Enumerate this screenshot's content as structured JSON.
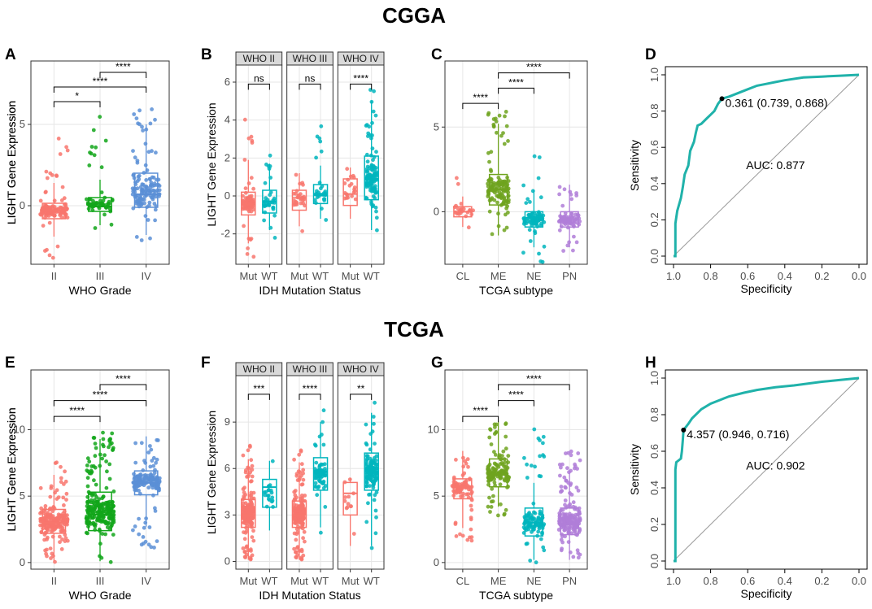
{
  "titles": {
    "top": "CGGA",
    "bottom": "TCGA"
  },
  "colors": {
    "red": "#F8766D",
    "green": "#12A61A",
    "blue": "#5B8FD6",
    "teal": "#00B5BD",
    "olive": "#6FA31F",
    "purple": "#B07ED8",
    "roc": "#20B2AA"
  },
  "chart_data": [
    {
      "panel": "A",
      "type": "box",
      "xlabel": "WHO Grade",
      "ylabel": "LIGHT Gene Expression",
      "ylim": [
        -3.6,
        8.9
      ],
      "yticks": [
        0,
        5
      ],
      "groups": [
        {
          "name": "II",
          "color": "#F8766D",
          "q": [
            -1.9,
            -0.8,
            -0.3,
            0.15,
            1.4
          ],
          "n": 120,
          "spread": [
            -3.4,
            4.2
          ]
        },
        {
          "name": "III",
          "color": "#12A61A",
          "q": [
            -1.2,
            -0.35,
            -0.05,
            0.5,
            1.6
          ],
          "n": 60,
          "spread": [
            -2.4,
            5.8
          ]
        },
        {
          "name": "IV",
          "color": "#5B8FD6",
          "q": [
            -1.8,
            -0.1,
            0.7,
            2.0,
            5.0
          ],
          "n": 130,
          "spread": [
            -2.3,
            6.0
          ]
        }
      ],
      "comparisons": [
        {
          "a": 0,
          "b": 1,
          "label": "*",
          "y": 6.4
        },
        {
          "a": 0,
          "b": 2,
          "label": "****",
          "y": 7.3
        },
        {
          "a": 1,
          "b": 2,
          "label": "****",
          "y": 8.2
        }
      ]
    },
    {
      "panel": "B",
      "type": "facet_box",
      "xlabel": "IDH Mutation Status",
      "ylabel": "LIGHT Gene Expression",
      "ylim": [
        -3.6,
        6.9
      ],
      "yticks": [
        -2,
        0,
        2,
        4,
        6
      ],
      "facets": [
        {
          "strip": "WHO II",
          "sig": "ns",
          "sig_y": 5.9,
          "groups": [
            {
              "name": "Mut",
              "color": "#F8766D",
              "q": [
                -2.5,
                -1.0,
                -0.45,
                0.2,
                1.9
              ],
              "n": 80,
              "spread": [
                -3.4,
                4.2
              ]
            },
            {
              "name": "WT",
              "color": "#00B5BD",
              "q": [
                -1.8,
                -0.9,
                -0.3,
                0.3,
                1.7
              ],
              "n": 35,
              "spread": [
                -3.2,
                4.0
              ]
            }
          ]
        },
        {
          "strip": "WHO III",
          "sig": "ns",
          "sig_y": 5.9,
          "groups": [
            {
              "name": "Mut",
              "color": "#F8766D",
              "q": [
                -1.6,
                -0.75,
                -0.1,
                0.3,
                1.2
              ],
              "n": 30,
              "spread": [
                -2.4,
                1.2
              ]
            },
            {
              "name": "WT",
              "color": "#00B5BD",
              "q": [
                -1.2,
                -0.4,
                0.05,
                0.6,
                1.6
              ],
              "n": 30,
              "spread": [
                -2.4,
                5.8
              ]
            }
          ]
        },
        {
          "strip": "WHO IV",
          "sig": "****",
          "sig_y": 5.9,
          "groups": [
            {
              "name": "Mut",
              "color": "#F8766D",
              "q": [
                -1.2,
                -0.5,
                0.1,
                0.9,
                1.5
              ],
              "n": 20,
              "spread": [
                -1.6,
                1.5
              ]
            },
            {
              "name": "WT",
              "color": "#00B5BD",
              "q": [
                -1.8,
                -0.2,
                0.9,
                2.1,
                5.0
              ],
              "n": 110,
              "spread": [
                -2.3,
                6.0
              ]
            }
          ]
        }
      ]
    },
    {
      "panel": "C",
      "type": "box",
      "xlabel": "TCGA subtype",
      "ylabel": "LIGHT Gene Expression",
      "ylim": [
        -3.1,
        8.9
      ],
      "yticks": [
        0,
        5
      ],
      "groups": [
        {
          "name": "CL",
          "color": "#F8766D",
          "q": [
            -0.9,
            -0.3,
            0.0,
            0.3,
            0.9
          ],
          "n": 25,
          "spread": [
            -1.1,
            2.0
          ]
        },
        {
          "name": "ME",
          "color": "#6FA31F",
          "q": [
            -1.4,
            0.4,
            1.3,
            2.2,
            5.2
          ],
          "n": 130,
          "spread": [
            -1.5,
            6.0
          ]
        },
        {
          "name": "NE",
          "color": "#00B5BD",
          "q": [
            -2.1,
            -0.9,
            -0.35,
            0.0,
            1.3
          ],
          "n": 80,
          "spread": [
            -3.0,
            3.4
          ]
        },
        {
          "name": "PN",
          "color": "#B07ED8",
          "q": [
            -2.1,
            -0.9,
            -0.45,
            0.0,
            1.6
          ],
          "n": 80,
          "spread": [
            -2.4,
            2.0
          ]
        }
      ],
      "comparisons": [
        {
          "a": 1,
          "b": 0,
          "label": "****",
          "y": 6.4
        },
        {
          "a": 1,
          "b": 2,
          "label": "****",
          "y": 7.3
        },
        {
          "a": 1,
          "b": 3,
          "label": "****",
          "y": 8.2
        }
      ]
    },
    {
      "panel": "D",
      "type": "roc",
      "xlabel": "Specificity",
      "ylabel": "Sensitivity",
      "xticks": [
        1.0,
        0.8,
        0.6,
        0.4,
        0.2,
        0.0
      ],
      "yticks": [
        0.0,
        0.2,
        0.4,
        0.6,
        0.8,
        1.0
      ],
      "auc": "AUC: 0.877",
      "threshold_label": "0.361 (0.739, 0.868)",
      "threshold": {
        "spec": 0.739,
        "sens": 0.868
      },
      "auc_text_at": {
        "spec": 0.45,
        "sens": 0.48
      },
      "curve": [
        [
          1.0,
          0.0
        ],
        [
          0.99,
          0.0
        ],
        [
          0.99,
          0.18
        ],
        [
          0.98,
          0.25
        ],
        [
          0.96,
          0.32
        ],
        [
          0.95,
          0.38
        ],
        [
          0.94,
          0.45
        ],
        [
          0.92,
          0.5
        ],
        [
          0.91,
          0.58
        ],
        [
          0.89,
          0.63
        ],
        [
          0.88,
          0.68
        ],
        [
          0.87,
          0.72
        ],
        [
          0.85,
          0.73
        ],
        [
          0.82,
          0.76
        ],
        [
          0.8,
          0.78
        ],
        [
          0.78,
          0.8
        ],
        [
          0.76,
          0.84
        ],
        [
          0.739,
          0.868
        ],
        [
          0.7,
          0.88
        ],
        [
          0.65,
          0.9
        ],
        [
          0.6,
          0.92
        ],
        [
          0.55,
          0.94
        ],
        [
          0.5,
          0.95
        ],
        [
          0.45,
          0.96
        ],
        [
          0.4,
          0.97
        ],
        [
          0.3,
          0.985
        ],
        [
          0.2,
          0.99
        ],
        [
          0.1,
          0.995
        ],
        [
          0.0,
          1.0
        ]
      ]
    },
    {
      "panel": "E",
      "type": "box",
      "xlabel": "WHO Grade",
      "ylabel": "LIGHT Gene Expression",
      "ylim": [
        -0.5,
        14.5
      ],
      "yticks": [
        0,
        5,
        10
      ],
      "groups": [
        {
          "name": "II",
          "color": "#F8766D",
          "q": [
            0.1,
            2.2,
            3.0,
            4.0,
            6.6
          ],
          "n": 200,
          "spread": [
            0.0,
            7.6
          ]
        },
        {
          "name": "III",
          "color": "#12A61A",
          "q": [
            0.1,
            2.4,
            3.6,
            5.3,
            9.3
          ],
          "n": 250,
          "spread": [
            0.0,
            9.8
          ]
        },
        {
          "name": "IV",
          "color": "#5B8FD6",
          "q": [
            2.7,
            5.1,
            6.0,
            6.9,
            9.5
          ],
          "n": 150,
          "spread": [
            1.0,
            10.2
          ]
        }
      ],
      "comparisons": [
        {
          "a": 0,
          "b": 1,
          "label": "****",
          "y": 11.0
        },
        {
          "a": 0,
          "b": 2,
          "label": "****",
          "y": 12.2
        },
        {
          "a": 1,
          "b": 2,
          "label": "****",
          "y": 13.4
        }
      ]
    },
    {
      "panel": "F",
      "type": "facet_box",
      "xlabel": "IDH Mutation Status",
      "ylabel": "LIGHT Gene Expression",
      "ylim": [
        -0.5,
        12.0
      ],
      "yticks": [
        0,
        3,
        6,
        9
      ],
      "facets": [
        {
          "strip": "WHO II",
          "sig": "***",
          "sig_y": 10.8,
          "groups": [
            {
              "name": "Mut",
              "color": "#F8766D",
              "q": [
                0.1,
                2.2,
                3.0,
                4.0,
                6.6
              ],
              "n": 200,
              "spread": [
                0.0,
                7.5
              ]
            },
            {
              "name": "WT",
              "color": "#00B5BD",
              "q": [
                2.0,
                3.5,
                4.8,
                5.3,
                6.5
              ],
              "n": 20,
              "spread": [
                1.8,
                6.5
              ]
            }
          ]
        },
        {
          "strip": "WHO III",
          "sig": "****",
          "sig_y": 10.8,
          "groups": [
            {
              "name": "Mut",
              "color": "#F8766D",
              "q": [
                0.1,
                2.2,
                3.0,
                3.9,
                6.4
              ],
              "n": 200,
              "spread": [
                0.0,
                7.2
              ]
            },
            {
              "name": "WT",
              "color": "#00B5BD",
              "q": [
                2.2,
                4.6,
                5.8,
                6.7,
                9.0
              ],
              "n": 70,
              "spread": [
                1.8,
                9.8
              ]
            }
          ]
        },
        {
          "strip": "WHO IV",
          "sig": "**",
          "sig_y": 10.8,
          "groups": [
            {
              "name": "Mut",
              "color": "#F8766D",
              "q": [
                1.0,
                3.0,
                4.4,
                5.1,
                5.4
              ],
              "n": 12,
              "spread": [
                0.8,
                5.5
              ]
            },
            {
              "name": "WT",
              "color": "#00B5BD",
              "q": [
                1.0,
                4.6,
                5.8,
                7.0,
                9.6
              ],
              "n": 130,
              "spread": [
                0.8,
                10.3
              ]
            }
          ]
        }
      ]
    },
    {
      "panel": "G",
      "type": "box",
      "xlabel": "TCGA subtype",
      "ylabel": "LIGHT Gene Expression",
      "ylim": [
        -0.5,
        14.5
      ],
      "yticks": [
        0,
        5,
        10
      ],
      "groups": [
        {
          "name": "CL",
          "color": "#F8766D",
          "q": [
            2.6,
            4.8,
            5.7,
            6.3,
            8.4
          ],
          "n": 90,
          "spread": [
            1.6,
            8.4
          ]
        },
        {
          "name": "ME",
          "color": "#6FA31F",
          "q": [
            4.2,
            5.7,
            6.6,
            7.8,
            10.6
          ],
          "n": 130,
          "spread": [
            3.5,
            10.7
          ]
        },
        {
          "name": "NE",
          "color": "#00B5BD",
          "q": [
            0.2,
            2.0,
            3.0,
            4.1,
            6.0
          ],
          "n": 100,
          "spread": [
            0.0,
            10.1
          ]
        },
        {
          "name": "PN",
          "color": "#B07ED8",
          "q": [
            0.2,
            2.1,
            2.9,
            4.1,
            6.9
          ],
          "n": 200,
          "spread": [
            0.0,
            8.5
          ]
        }
      ],
      "comparisons": [
        {
          "a": 1,
          "b": 0,
          "label": "****",
          "y": 11.0
        },
        {
          "a": 1,
          "b": 2,
          "label": "****",
          "y": 12.2
        },
        {
          "a": 1,
          "b": 3,
          "label": "****",
          "y": 13.4
        }
      ]
    },
    {
      "panel": "H",
      "type": "roc",
      "xlabel": "Specificity",
      "ylabel": "Sensitivity",
      "xticks": [
        1.0,
        0.8,
        0.6,
        0.4,
        0.2,
        0.0
      ],
      "yticks": [
        0.0,
        0.2,
        0.4,
        0.6,
        0.8,
        1.0
      ],
      "auc": "AUC: 0.902",
      "threshold_label": "4.357 (0.946, 0.716)",
      "threshold": {
        "spec": 0.946,
        "sens": 0.716
      },
      "auc_text_at": {
        "spec": 0.45,
        "sens": 0.5
      },
      "curve": [
        [
          1.0,
          0.0
        ],
        [
          0.99,
          0.0
        ],
        [
          0.99,
          0.5
        ],
        [
          0.985,
          0.54
        ],
        [
          0.96,
          0.56
        ],
        [
          0.955,
          0.6
        ],
        [
          0.95,
          0.66
        ],
        [
          0.946,
          0.716
        ],
        [
          0.92,
          0.75
        ],
        [
          0.9,
          0.78
        ],
        [
          0.85,
          0.83
        ],
        [
          0.8,
          0.86
        ],
        [
          0.75,
          0.88
        ],
        [
          0.7,
          0.9
        ],
        [
          0.62,
          0.92
        ],
        [
          0.55,
          0.935
        ],
        [
          0.45,
          0.95
        ],
        [
          0.35,
          0.96
        ],
        [
          0.2,
          0.98
        ],
        [
          0.1,
          0.99
        ],
        [
          0.0,
          1.0
        ]
      ]
    }
  ]
}
